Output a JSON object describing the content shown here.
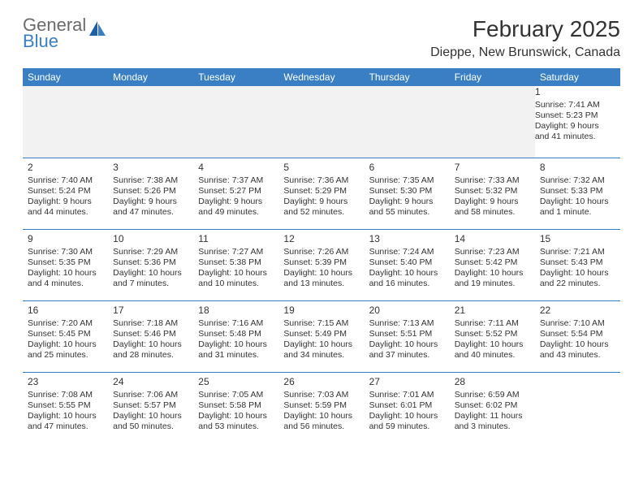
{
  "logo": {
    "top": "General",
    "bottom": "Blue"
  },
  "title": "February 2025",
  "location": "Dieppe, New Brunswick, Canada",
  "colors": {
    "header_bg": "#3a7fc4",
    "header_text": "#ffffff",
    "border": "#3a7fc4",
    "empty_bg": "#f2f2f2",
    "text": "#333333",
    "logo_gray": "#6b6b6b",
    "logo_blue": "#3a7fc4"
  },
  "weekdays": [
    "Sunday",
    "Monday",
    "Tuesday",
    "Wednesday",
    "Thursday",
    "Friday",
    "Saturday"
  ],
  "weeks": [
    [
      null,
      null,
      null,
      null,
      null,
      null,
      {
        "d": "1",
        "sunrise": "Sunrise: 7:41 AM",
        "sunset": "Sunset: 5:23 PM",
        "day1": "Daylight: 9 hours",
        "day2": "and 41 minutes."
      }
    ],
    [
      {
        "d": "2",
        "sunrise": "Sunrise: 7:40 AM",
        "sunset": "Sunset: 5:24 PM",
        "day1": "Daylight: 9 hours",
        "day2": "and 44 minutes."
      },
      {
        "d": "3",
        "sunrise": "Sunrise: 7:38 AM",
        "sunset": "Sunset: 5:26 PM",
        "day1": "Daylight: 9 hours",
        "day2": "and 47 minutes."
      },
      {
        "d": "4",
        "sunrise": "Sunrise: 7:37 AM",
        "sunset": "Sunset: 5:27 PM",
        "day1": "Daylight: 9 hours",
        "day2": "and 49 minutes."
      },
      {
        "d": "5",
        "sunrise": "Sunrise: 7:36 AM",
        "sunset": "Sunset: 5:29 PM",
        "day1": "Daylight: 9 hours",
        "day2": "and 52 minutes."
      },
      {
        "d": "6",
        "sunrise": "Sunrise: 7:35 AM",
        "sunset": "Sunset: 5:30 PM",
        "day1": "Daylight: 9 hours",
        "day2": "and 55 minutes."
      },
      {
        "d": "7",
        "sunrise": "Sunrise: 7:33 AM",
        "sunset": "Sunset: 5:32 PM",
        "day1": "Daylight: 9 hours",
        "day2": "and 58 minutes."
      },
      {
        "d": "8",
        "sunrise": "Sunrise: 7:32 AM",
        "sunset": "Sunset: 5:33 PM",
        "day1": "Daylight: 10 hours",
        "day2": "and 1 minute."
      }
    ],
    [
      {
        "d": "9",
        "sunrise": "Sunrise: 7:30 AM",
        "sunset": "Sunset: 5:35 PM",
        "day1": "Daylight: 10 hours",
        "day2": "and 4 minutes."
      },
      {
        "d": "10",
        "sunrise": "Sunrise: 7:29 AM",
        "sunset": "Sunset: 5:36 PM",
        "day1": "Daylight: 10 hours",
        "day2": "and 7 minutes."
      },
      {
        "d": "11",
        "sunrise": "Sunrise: 7:27 AM",
        "sunset": "Sunset: 5:38 PM",
        "day1": "Daylight: 10 hours",
        "day2": "and 10 minutes."
      },
      {
        "d": "12",
        "sunrise": "Sunrise: 7:26 AM",
        "sunset": "Sunset: 5:39 PM",
        "day1": "Daylight: 10 hours",
        "day2": "and 13 minutes."
      },
      {
        "d": "13",
        "sunrise": "Sunrise: 7:24 AM",
        "sunset": "Sunset: 5:40 PM",
        "day1": "Daylight: 10 hours",
        "day2": "and 16 minutes."
      },
      {
        "d": "14",
        "sunrise": "Sunrise: 7:23 AM",
        "sunset": "Sunset: 5:42 PM",
        "day1": "Daylight: 10 hours",
        "day2": "and 19 minutes."
      },
      {
        "d": "15",
        "sunrise": "Sunrise: 7:21 AM",
        "sunset": "Sunset: 5:43 PM",
        "day1": "Daylight: 10 hours",
        "day2": "and 22 minutes."
      }
    ],
    [
      {
        "d": "16",
        "sunrise": "Sunrise: 7:20 AM",
        "sunset": "Sunset: 5:45 PM",
        "day1": "Daylight: 10 hours",
        "day2": "and 25 minutes."
      },
      {
        "d": "17",
        "sunrise": "Sunrise: 7:18 AM",
        "sunset": "Sunset: 5:46 PM",
        "day1": "Daylight: 10 hours",
        "day2": "and 28 minutes."
      },
      {
        "d": "18",
        "sunrise": "Sunrise: 7:16 AM",
        "sunset": "Sunset: 5:48 PM",
        "day1": "Daylight: 10 hours",
        "day2": "and 31 minutes."
      },
      {
        "d": "19",
        "sunrise": "Sunrise: 7:15 AM",
        "sunset": "Sunset: 5:49 PM",
        "day1": "Daylight: 10 hours",
        "day2": "and 34 minutes."
      },
      {
        "d": "20",
        "sunrise": "Sunrise: 7:13 AM",
        "sunset": "Sunset: 5:51 PM",
        "day1": "Daylight: 10 hours",
        "day2": "and 37 minutes."
      },
      {
        "d": "21",
        "sunrise": "Sunrise: 7:11 AM",
        "sunset": "Sunset: 5:52 PM",
        "day1": "Daylight: 10 hours",
        "day2": "and 40 minutes."
      },
      {
        "d": "22",
        "sunrise": "Sunrise: 7:10 AM",
        "sunset": "Sunset: 5:54 PM",
        "day1": "Daylight: 10 hours",
        "day2": "and 43 minutes."
      }
    ],
    [
      {
        "d": "23",
        "sunrise": "Sunrise: 7:08 AM",
        "sunset": "Sunset: 5:55 PM",
        "day1": "Daylight: 10 hours",
        "day2": "and 47 minutes."
      },
      {
        "d": "24",
        "sunrise": "Sunrise: 7:06 AM",
        "sunset": "Sunset: 5:57 PM",
        "day1": "Daylight: 10 hours",
        "day2": "and 50 minutes."
      },
      {
        "d": "25",
        "sunrise": "Sunrise: 7:05 AM",
        "sunset": "Sunset: 5:58 PM",
        "day1": "Daylight: 10 hours",
        "day2": "and 53 minutes."
      },
      {
        "d": "26",
        "sunrise": "Sunrise: 7:03 AM",
        "sunset": "Sunset: 5:59 PM",
        "day1": "Daylight: 10 hours",
        "day2": "and 56 minutes."
      },
      {
        "d": "27",
        "sunrise": "Sunrise: 7:01 AM",
        "sunset": "Sunset: 6:01 PM",
        "day1": "Daylight: 10 hours",
        "day2": "and 59 minutes."
      },
      {
        "d": "28",
        "sunrise": "Sunrise: 6:59 AM",
        "sunset": "Sunset: 6:02 PM",
        "day1": "Daylight: 11 hours",
        "day2": "and 3 minutes."
      },
      null
    ]
  ]
}
